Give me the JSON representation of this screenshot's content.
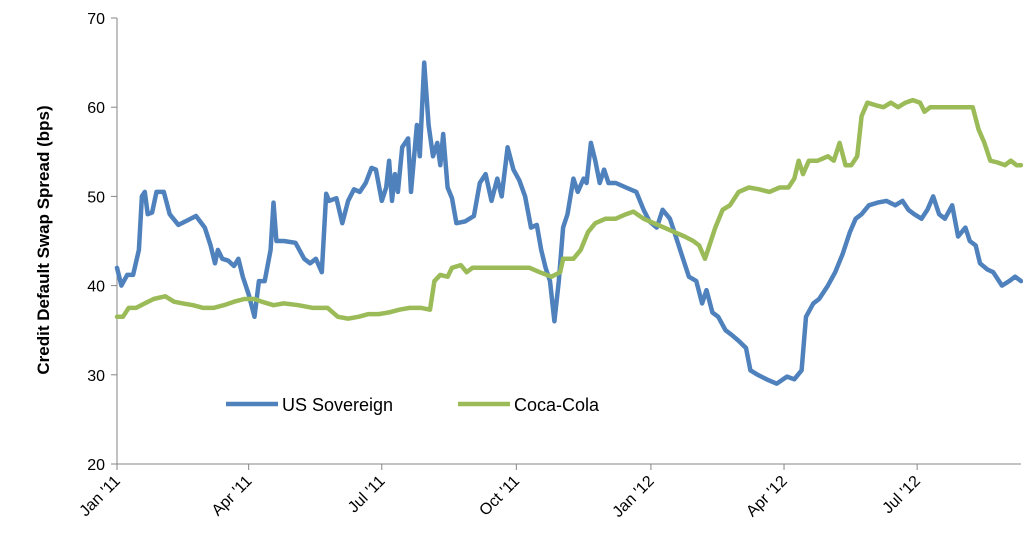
{
  "chart_data": {
    "type": "line",
    "title": "",
    "xlabel": "",
    "ylabel": "Credit Default Swap Spread (bps)",
    "ylim": [
      20,
      70
    ],
    "yticks": [
      20,
      30,
      40,
      50,
      60,
      70
    ],
    "xlim": [
      "2011-01-01",
      "2012-09-10"
    ],
    "xticks": [
      {
        "date": "2011-01-01",
        "label": "Jan '11"
      },
      {
        "date": "2011-04-01",
        "label": "Apr '11"
      },
      {
        "date": "2011-07-01",
        "label": "Jul '11"
      },
      {
        "date": "2011-10-01",
        "label": "Oct '11"
      },
      {
        "date": "2012-01-01",
        "label": "Jan '12"
      },
      {
        "date": "2012-04-01",
        "label": "Apr '12"
      },
      {
        "date": "2012-07-01",
        "label": "Jul '12"
      }
    ],
    "grid": false,
    "legend_position": "bottom-left inside plot",
    "series": [
      {
        "name": "US Sovereign",
        "color": "#4f81bd",
        "points": [
          [
            "2011-01-01",
            42.0
          ],
          [
            "2011-01-04",
            40.0
          ],
          [
            "2011-01-08",
            41.2
          ],
          [
            "2011-01-12",
            41.2
          ],
          [
            "2011-01-16",
            44.0
          ],
          [
            "2011-01-18",
            50.0
          ],
          [
            "2011-01-20",
            50.5
          ],
          [
            "2011-01-22",
            48.0
          ],
          [
            "2011-01-25",
            48.2
          ],
          [
            "2011-01-28",
            50.5
          ],
          [
            "2011-02-02",
            50.5
          ],
          [
            "2011-02-06",
            48.0
          ],
          [
            "2011-02-12",
            46.8
          ],
          [
            "2011-02-18",
            47.3
          ],
          [
            "2011-02-24",
            47.8
          ],
          [
            "2011-03-02",
            46.5
          ],
          [
            "2011-03-06",
            44.5
          ],
          [
            "2011-03-09",
            42.5
          ],
          [
            "2011-03-11",
            44.0
          ],
          [
            "2011-03-14",
            43.0
          ],
          [
            "2011-03-18",
            42.8
          ],
          [
            "2011-03-22",
            42.2
          ],
          [
            "2011-03-25",
            43.0
          ],
          [
            "2011-03-28",
            41.0
          ],
          [
            "2011-04-01",
            39.0
          ],
          [
            "2011-04-05",
            36.5
          ],
          [
            "2011-04-08",
            40.5
          ],
          [
            "2011-04-12",
            40.5
          ],
          [
            "2011-04-16",
            44.0
          ],
          [
            "2011-04-18",
            49.3
          ],
          [
            "2011-04-20",
            45.0
          ],
          [
            "2011-04-25",
            45.0
          ],
          [
            "2011-05-03",
            44.8
          ],
          [
            "2011-05-09",
            43.0
          ],
          [
            "2011-05-13",
            42.5
          ],
          [
            "2011-05-17",
            43.0
          ],
          [
            "2011-05-21",
            41.5
          ],
          [
            "2011-05-24",
            50.3
          ],
          [
            "2011-05-26",
            49.5
          ],
          [
            "2011-05-31",
            49.8
          ],
          [
            "2011-06-04",
            47.0
          ],
          [
            "2011-06-08",
            49.5
          ],
          [
            "2011-06-12",
            50.8
          ],
          [
            "2011-06-16",
            50.5
          ],
          [
            "2011-06-20",
            51.5
          ],
          [
            "2011-06-24",
            53.2
          ],
          [
            "2011-06-27",
            53.0
          ],
          [
            "2011-07-01",
            49.5
          ],
          [
            "2011-07-04",
            51.0
          ],
          [
            "2011-07-06",
            54.0
          ],
          [
            "2011-07-08",
            49.5
          ],
          [
            "2011-07-10",
            52.5
          ],
          [
            "2011-07-12",
            50.5
          ],
          [
            "2011-07-15",
            55.5
          ],
          [
            "2011-07-19",
            56.5
          ],
          [
            "2011-07-21",
            50.5
          ],
          [
            "2011-07-25",
            58.0
          ],
          [
            "2011-07-27",
            54.5
          ],
          [
            "2011-07-30",
            65.0
          ],
          [
            "2011-08-02",
            58.0
          ],
          [
            "2011-08-05",
            54.5
          ],
          [
            "2011-08-08",
            56.0
          ],
          [
            "2011-08-10",
            53.5
          ],
          [
            "2011-08-12",
            57.0
          ],
          [
            "2011-08-15",
            51.0
          ],
          [
            "2011-08-18",
            49.8
          ],
          [
            "2011-08-21",
            47.0
          ],
          [
            "2011-08-27",
            47.2
          ],
          [
            "2011-09-02",
            47.8
          ],
          [
            "2011-09-06",
            51.5
          ],
          [
            "2011-09-10",
            52.5
          ],
          [
            "2011-09-14",
            49.5
          ],
          [
            "2011-09-18",
            52.0
          ],
          [
            "2011-09-21",
            50.0
          ],
          [
            "2011-09-25",
            55.5
          ],
          [
            "2011-09-29",
            53.0
          ],
          [
            "2011-10-03",
            51.8
          ],
          [
            "2011-10-07",
            50.0
          ],
          [
            "2011-10-11",
            46.5
          ],
          [
            "2011-10-15",
            46.8
          ],
          [
            "2011-10-18",
            44.0
          ],
          [
            "2011-10-21",
            42.0
          ],
          [
            "2011-10-24",
            40.5
          ],
          [
            "2011-10-27",
            36.0
          ],
          [
            "2011-10-30",
            40.5
          ],
          [
            "2011-11-02",
            46.5
          ],
          [
            "2011-11-05",
            48.0
          ],
          [
            "2011-11-09",
            52.0
          ],
          [
            "2011-11-12",
            50.5
          ],
          [
            "2011-11-16",
            52.0
          ],
          [
            "2011-11-18",
            51.5
          ],
          [
            "2011-11-21",
            56.0
          ],
          [
            "2011-11-24",
            54.0
          ],
          [
            "2011-11-27",
            51.5
          ],
          [
            "2011-11-30",
            53.0
          ],
          [
            "2011-12-03",
            51.5
          ],
          [
            "2011-12-08",
            51.5
          ],
          [
            "2011-12-15",
            51.0
          ],
          [
            "2011-12-22",
            50.5
          ],
          [
            "2011-12-27",
            48.5
          ],
          [
            "2011-12-31",
            47.2
          ],
          [
            "2012-01-05",
            46.5
          ],
          [
            "2012-01-09",
            48.5
          ],
          [
            "2012-01-14",
            47.5
          ],
          [
            "2012-01-18",
            45.5
          ],
          [
            "2012-01-22",
            43.5
          ],
          [
            "2012-01-27",
            41.0
          ],
          [
            "2012-02-01",
            40.5
          ],
          [
            "2012-02-05",
            38.0
          ],
          [
            "2012-02-08",
            39.5
          ],
          [
            "2012-02-12",
            37.0
          ],
          [
            "2012-02-16",
            36.5
          ],
          [
            "2012-02-21",
            35.0
          ],
          [
            "2012-02-25",
            34.5
          ],
          [
            "2012-03-01",
            33.8
          ],
          [
            "2012-03-06",
            33.0
          ],
          [
            "2012-03-09",
            30.5
          ],
          [
            "2012-03-14",
            30.0
          ],
          [
            "2012-03-20",
            29.5
          ],
          [
            "2012-03-27",
            29.0
          ],
          [
            "2012-04-03",
            29.8
          ],
          [
            "2012-04-08",
            29.5
          ],
          [
            "2012-04-13",
            30.5
          ],
          [
            "2012-04-16",
            36.5
          ],
          [
            "2012-04-21",
            38.0
          ],
          [
            "2012-04-25",
            38.5
          ],
          [
            "2012-05-01",
            40.0
          ],
          [
            "2012-05-06",
            41.5
          ],
          [
            "2012-05-11",
            43.5
          ],
          [
            "2012-05-16",
            46.0
          ],
          [
            "2012-05-20",
            47.5
          ],
          [
            "2012-05-24",
            48.0
          ],
          [
            "2012-05-29",
            49.0
          ],
          [
            "2012-06-04",
            49.3
          ],
          [
            "2012-06-10",
            49.5
          ],
          [
            "2012-06-16",
            49.0
          ],
          [
            "2012-06-21",
            49.5
          ],
          [
            "2012-06-25",
            48.5
          ],
          [
            "2012-06-29",
            48.0
          ],
          [
            "2012-07-04",
            47.5
          ],
          [
            "2012-07-08",
            48.5
          ],
          [
            "2012-07-12",
            50.0
          ],
          [
            "2012-07-16",
            48.0
          ],
          [
            "2012-07-20",
            47.5
          ],
          [
            "2012-07-25",
            49.0
          ],
          [
            "2012-07-29",
            45.5
          ],
          [
            "2012-08-03",
            46.5
          ],
          [
            "2012-08-06",
            45.0
          ],
          [
            "2012-08-10",
            44.5
          ],
          [
            "2012-08-13",
            42.5
          ],
          [
            "2012-08-18",
            41.8
          ],
          [
            "2012-08-22",
            41.5
          ],
          [
            "2012-08-28",
            40.0
          ],
          [
            "2012-09-02",
            40.5
          ],
          [
            "2012-09-06",
            41.0
          ],
          [
            "2012-09-10",
            40.5
          ]
        ]
      },
      {
        "name": "Coca-Cola",
        "color": "#9bbb59",
        "points": [
          [
            "2011-01-01",
            36.5
          ],
          [
            "2011-01-05",
            36.5
          ],
          [
            "2011-01-09",
            37.5
          ],
          [
            "2011-01-14",
            37.5
          ],
          [
            "2011-01-20",
            38.0
          ],
          [
            "2011-01-26",
            38.5
          ],
          [
            "2011-02-03",
            38.8
          ],
          [
            "2011-02-09",
            38.2
          ],
          [
            "2011-02-15",
            38.0
          ],
          [
            "2011-02-22",
            37.8
          ],
          [
            "2011-03-01",
            37.5
          ],
          [
            "2011-03-08",
            37.5
          ],
          [
            "2011-03-15",
            37.8
          ],
          [
            "2011-03-22",
            38.2
          ],
          [
            "2011-03-29",
            38.5
          ],
          [
            "2011-04-05",
            38.5
          ],
          [
            "2011-04-10",
            38.2
          ],
          [
            "2011-04-18",
            37.8
          ],
          [
            "2011-04-25",
            38.0
          ],
          [
            "2011-05-05",
            37.8
          ],
          [
            "2011-05-15",
            37.5
          ],
          [
            "2011-05-25",
            37.5
          ],
          [
            "2011-06-01",
            36.5
          ],
          [
            "2011-06-08",
            36.3
          ],
          [
            "2011-06-15",
            36.5
          ],
          [
            "2011-06-22",
            36.8
          ],
          [
            "2011-06-29",
            36.8
          ],
          [
            "2011-07-06",
            37.0
          ],
          [
            "2011-07-13",
            37.3
          ],
          [
            "2011-07-20",
            37.5
          ],
          [
            "2011-07-28",
            37.5
          ],
          [
            "2011-08-03",
            37.3
          ],
          [
            "2011-08-06",
            40.5
          ],
          [
            "2011-08-10",
            41.2
          ],
          [
            "2011-08-15",
            41.0
          ],
          [
            "2011-08-18",
            42.0
          ],
          [
            "2011-08-24",
            42.3
          ],
          [
            "2011-08-28",
            41.5
          ],
          [
            "2011-09-01",
            42.0
          ],
          [
            "2011-09-10",
            42.0
          ],
          [
            "2011-09-20",
            42.0
          ],
          [
            "2011-10-01",
            42.0
          ],
          [
            "2011-10-10",
            42.0
          ],
          [
            "2011-10-17",
            41.5
          ],
          [
            "2011-10-25",
            41.0
          ],
          [
            "2011-10-31",
            41.5
          ],
          [
            "2011-11-02",
            43.0
          ],
          [
            "2011-11-09",
            43.0
          ],
          [
            "2011-11-14",
            44.0
          ],
          [
            "2011-11-19",
            46.0
          ],
          [
            "2011-11-24",
            47.0
          ],
          [
            "2011-12-01",
            47.5
          ],
          [
            "2011-12-08",
            47.5
          ],
          [
            "2011-12-15",
            48.0
          ],
          [
            "2011-12-20",
            48.3
          ],
          [
            "2011-12-27",
            47.5
          ],
          [
            "2012-01-03",
            47.0
          ],
          [
            "2012-01-10",
            46.5
          ],
          [
            "2012-01-17",
            46.0
          ],
          [
            "2012-01-24",
            45.5
          ],
          [
            "2012-01-30",
            45.0
          ],
          [
            "2012-02-03",
            44.5
          ],
          [
            "2012-02-07",
            43.0
          ],
          [
            "2012-02-10",
            44.5
          ],
          [
            "2012-02-14",
            46.5
          ],
          [
            "2012-02-19",
            48.5
          ],
          [
            "2012-02-24",
            49.0
          ],
          [
            "2012-03-01",
            50.5
          ],
          [
            "2012-03-08",
            51.0
          ],
          [
            "2012-03-15",
            50.8
          ],
          [
            "2012-03-22",
            50.5
          ],
          [
            "2012-03-29",
            51.0
          ],
          [
            "2012-04-04",
            51.0
          ],
          [
            "2012-04-08",
            52.0
          ],
          [
            "2012-04-11",
            54.0
          ],
          [
            "2012-04-14",
            52.5
          ],
          [
            "2012-04-18",
            54.0
          ],
          [
            "2012-04-24",
            54.0
          ],
          [
            "2012-05-01",
            54.5
          ],
          [
            "2012-05-05",
            54.0
          ],
          [
            "2012-05-09",
            56.0
          ],
          [
            "2012-05-13",
            53.5
          ],
          [
            "2012-05-17",
            53.5
          ],
          [
            "2012-05-21",
            54.5
          ],
          [
            "2012-05-24",
            59.0
          ],
          [
            "2012-05-28",
            60.5
          ],
          [
            "2012-06-03",
            60.2
          ],
          [
            "2012-06-08",
            60.0
          ],
          [
            "2012-06-13",
            60.5
          ],
          [
            "2012-06-18",
            60.0
          ],
          [
            "2012-06-23",
            60.5
          ],
          [
            "2012-06-28",
            60.8
          ],
          [
            "2012-07-03",
            60.5
          ],
          [
            "2012-07-06",
            59.5
          ],
          [
            "2012-07-10",
            60.0
          ],
          [
            "2012-07-20",
            60.0
          ],
          [
            "2012-07-31",
            60.0
          ],
          [
            "2012-08-08",
            60.0
          ],
          [
            "2012-08-12",
            57.5
          ],
          [
            "2012-08-16",
            56.0
          ],
          [
            "2012-08-20",
            54.0
          ],
          [
            "2012-08-25",
            53.8
          ],
          [
            "2012-08-30",
            53.5
          ],
          [
            "2012-09-03",
            54.0
          ],
          [
            "2012-09-07",
            53.5
          ],
          [
            "2012-09-10",
            53.5
          ]
        ]
      }
    ]
  }
}
